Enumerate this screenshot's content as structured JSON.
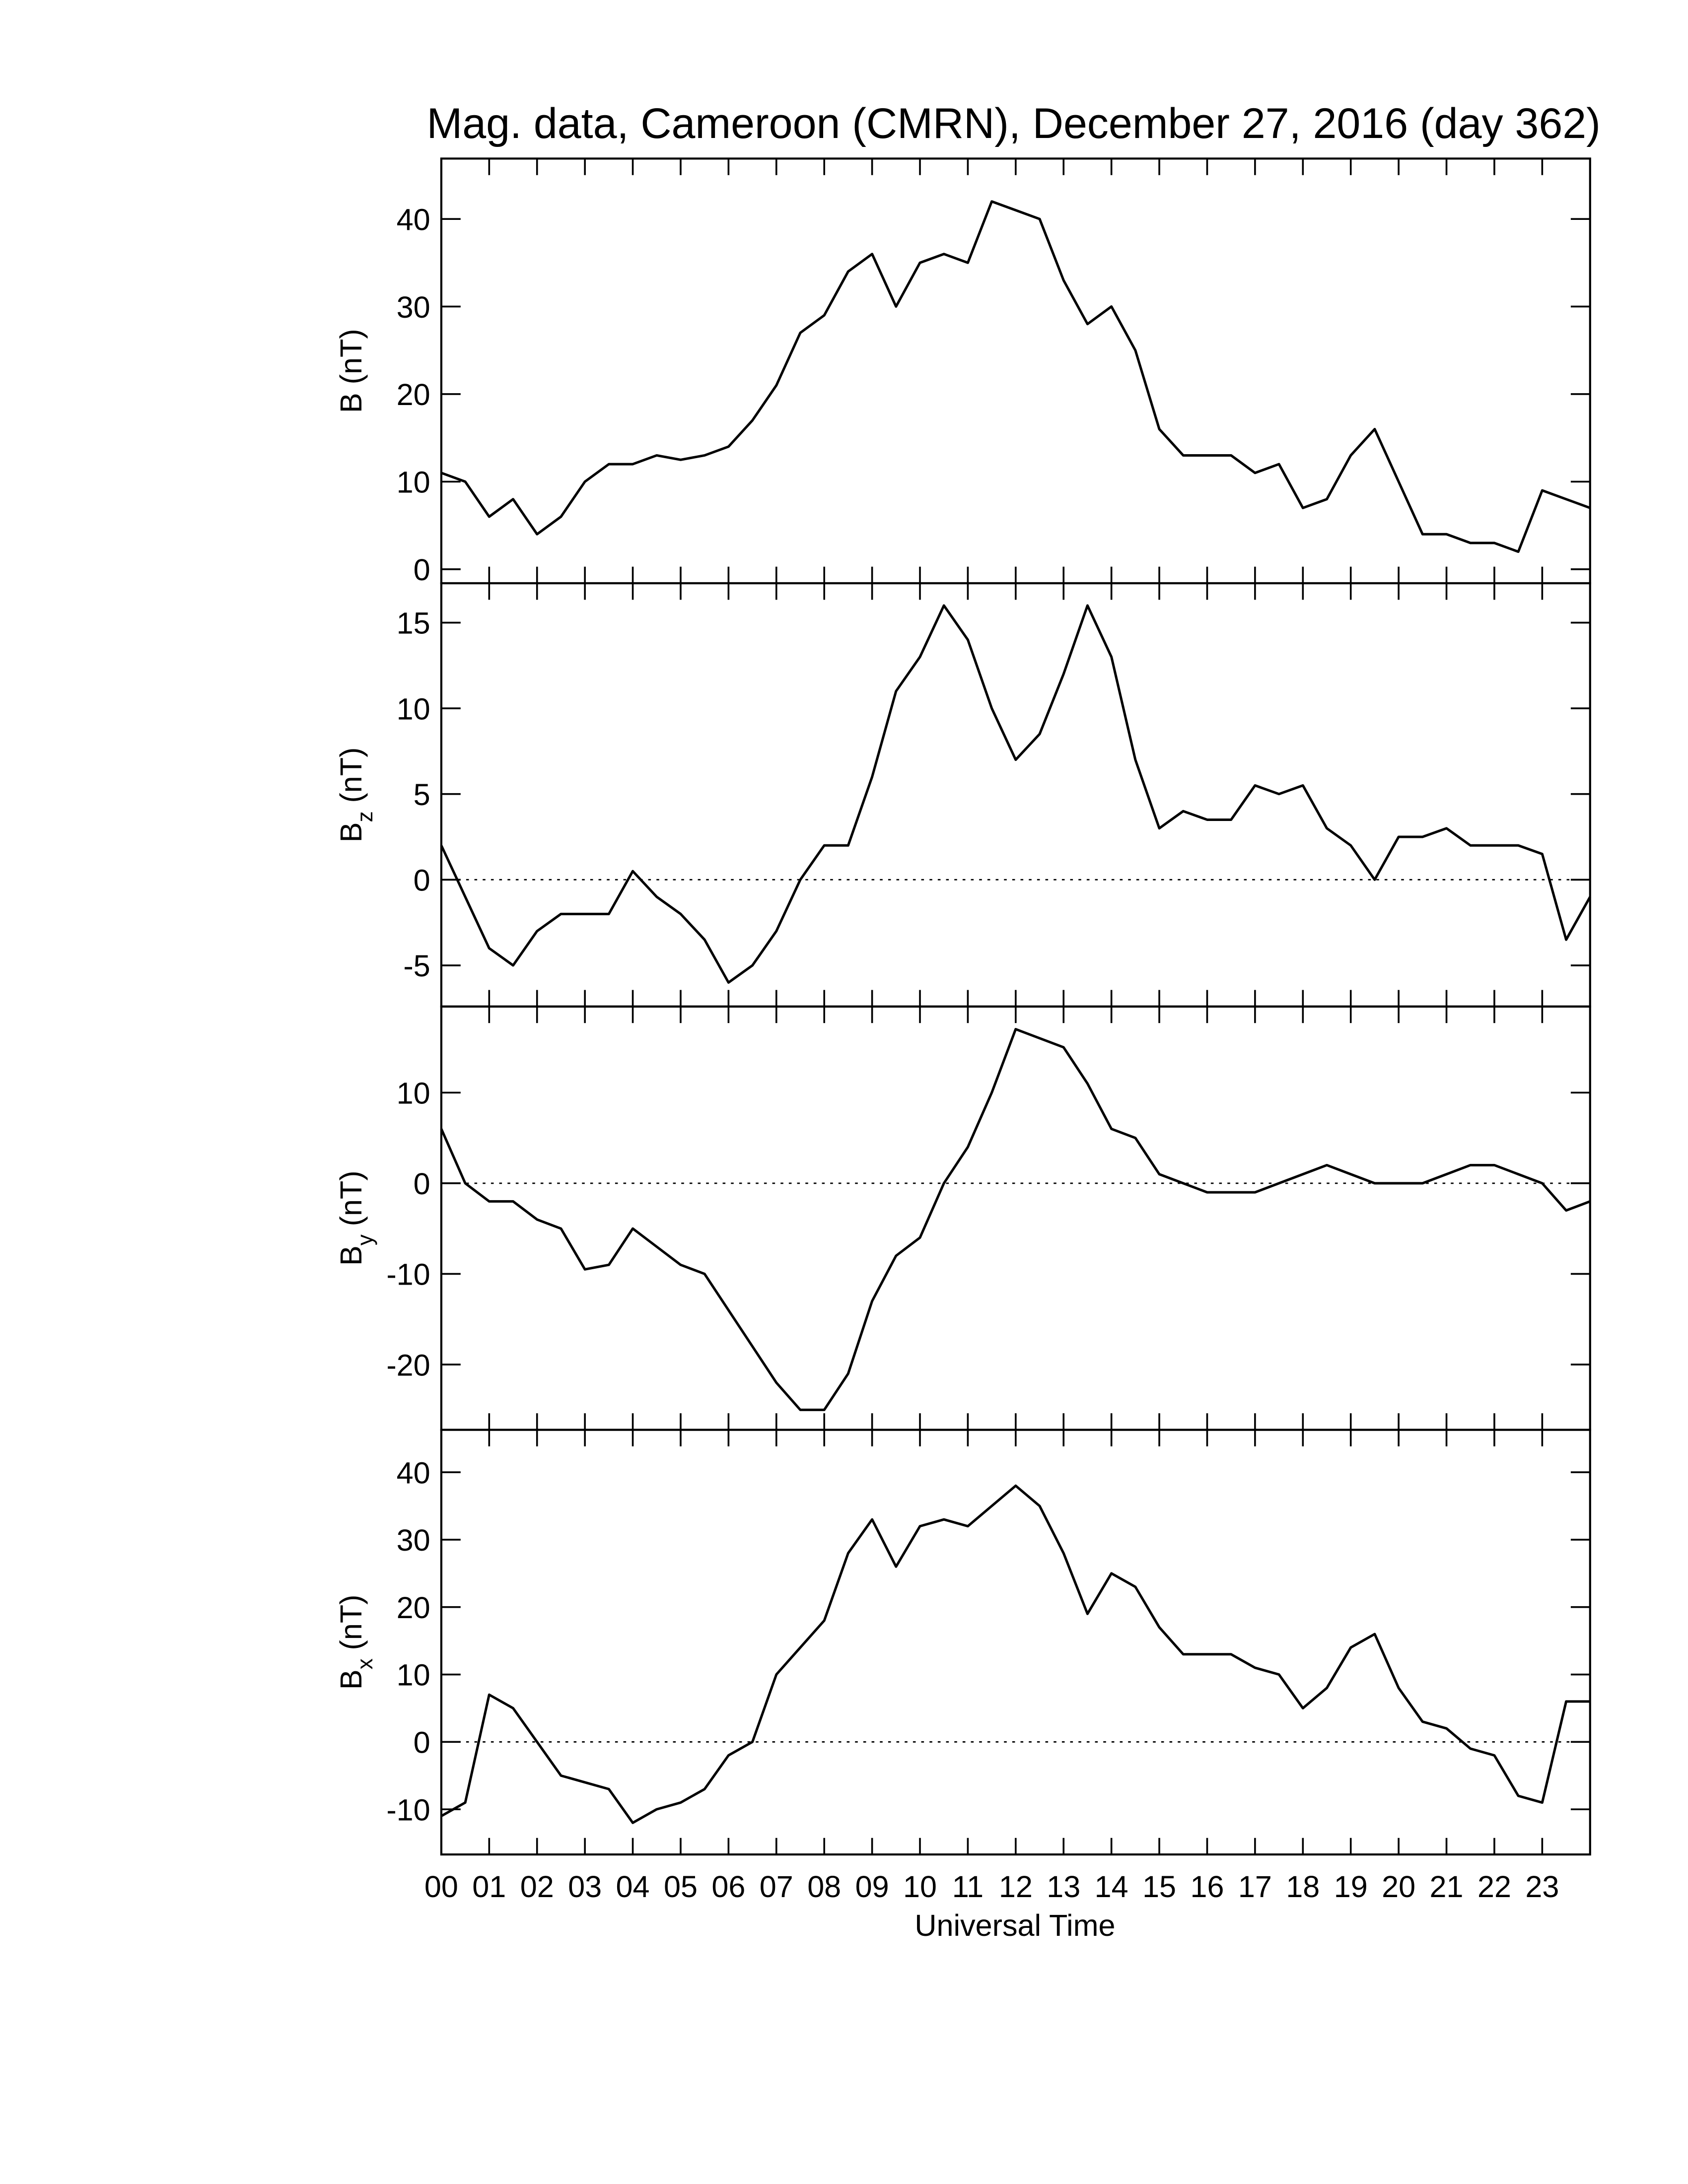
{
  "chart_data": [
    {
      "type": "line",
      "title": "Mag. data, Cameroon (CMRN), December 27, 2016 (day 362)",
      "ylabel": "B (nT)",
      "color": "#000000",
      "xlim": [
        0,
        24
      ],
      "ylim": [
        -1.6,
        46.9
      ],
      "yticks": [
        0,
        10,
        20,
        30,
        40
      ],
      "x": [
        0,
        0.5,
        1,
        1.5,
        2,
        2.5,
        3,
        3.5,
        4,
        4.5,
        5,
        5.5,
        6,
        6.5,
        7,
        7.5,
        8,
        8.5,
        9,
        9.5,
        10,
        10.5,
        11,
        11.5,
        12,
        12.5,
        13,
        13.5,
        14,
        14.5,
        15,
        15.5,
        16,
        16.5,
        17,
        17.5,
        18,
        18.5,
        19,
        19.5,
        20,
        20.5,
        21,
        21.5,
        22,
        22.5,
        23,
        23.5,
        24
      ],
      "values": [
        11,
        10,
        6,
        8,
        4,
        6,
        10,
        12,
        12,
        13,
        12.5,
        13,
        14,
        17,
        21,
        27,
        29,
        34,
        36,
        30,
        35,
        36,
        35,
        42,
        41,
        40,
        33,
        28,
        30,
        25,
        16,
        13,
        13,
        13,
        11,
        12,
        7,
        8,
        13,
        16,
        10,
        4,
        4,
        3,
        3,
        2,
        9,
        8,
        7
      ]
    },
    {
      "type": "line",
      "ylabel": "B",
      "ylabel_sub": "z",
      "ylabel_unit": "(nT)",
      "color": "#000000",
      "zero_line": true,
      "xlim": [
        0,
        24
      ],
      "ylim": [
        -7.4,
        17.3
      ],
      "yticks": [
        -5,
        0,
        5,
        10,
        15
      ],
      "x": [
        0,
        0.5,
        1,
        1.5,
        2,
        2.5,
        3,
        3.5,
        4,
        4.5,
        5,
        5.5,
        6,
        6.5,
        7,
        7.5,
        8,
        8.5,
        9,
        9.5,
        10,
        10.5,
        11,
        11.5,
        12,
        12.5,
        13,
        13.5,
        14,
        14.5,
        15,
        15.5,
        16,
        16.5,
        17,
        17.5,
        18,
        18.5,
        19,
        19.5,
        20,
        20.5,
        21,
        21.5,
        22,
        22.5,
        23,
        23.5,
        24
      ],
      "values": [
        2,
        -1,
        -4,
        -5,
        -3,
        -2,
        -2,
        -2,
        0.5,
        -1,
        -2,
        -3.5,
        -6,
        -5,
        -3,
        0,
        2,
        2,
        6,
        11,
        13,
        16,
        14,
        10,
        7,
        8.5,
        12,
        16,
        13,
        7,
        3,
        4,
        3.5,
        3.5,
        5.5,
        5,
        5.5,
        3,
        2,
        0,
        2.5,
        2.5,
        3,
        2,
        2,
        2,
        1.5,
        -3.5,
        -1
      ]
    },
    {
      "type": "line",
      "ylabel": "B",
      "ylabel_sub": "y",
      "ylabel_unit": "(nT)",
      "color": "#000000",
      "zero_line": true,
      "xlim": [
        0,
        24
      ],
      "ylim": [
        -27.2,
        19.5
      ],
      "yticks": [
        -20,
        -10,
        0,
        10
      ],
      "x": [
        0,
        0.5,
        1,
        1.5,
        2,
        2.5,
        3,
        3.5,
        4,
        4.5,
        5,
        5.5,
        6,
        6.5,
        7,
        7.5,
        8,
        8.5,
        9,
        9.5,
        10,
        10.5,
        11,
        11.5,
        12,
        12.5,
        13,
        13.5,
        14,
        14.5,
        15,
        15.5,
        16,
        16.5,
        17,
        17.5,
        18,
        18.5,
        19,
        19.5,
        20,
        20.5,
        21,
        21.5,
        22,
        22.5,
        23,
        23.5,
        24
      ],
      "values": [
        6,
        0,
        -2,
        -2,
        -4,
        -5,
        -9.5,
        -9,
        -5,
        -7,
        -9,
        -10,
        -14,
        -18,
        -22,
        -25,
        -25,
        -21,
        -13,
        -8,
        -6,
        0,
        4,
        10,
        17,
        16,
        15,
        11,
        6,
        5,
        1,
        0,
        -1,
        -1,
        -1,
        0,
        1,
        2,
        1,
        0,
        0,
        0,
        1,
        2,
        2,
        1,
        0,
        -3,
        -2
      ]
    },
    {
      "type": "line",
      "ylabel": "B",
      "ylabel_sub": "x",
      "ylabel_unit": "(nT)",
      "xlabel": "Universal Time",
      "color": "#000000",
      "zero_line": true,
      "xlim": [
        0,
        24
      ],
      "ylim": [
        -16.7,
        46.3
      ],
      "yticks": [
        -10,
        0,
        10,
        20,
        30,
        40
      ],
      "xticks": [
        {
          "value": 0,
          "label": "00"
        },
        {
          "value": 1,
          "label": "01"
        },
        {
          "value": 2,
          "label": "02"
        },
        {
          "value": 3,
          "label": "03"
        },
        {
          "value": 4,
          "label": "04"
        },
        {
          "value": 5,
          "label": "05"
        },
        {
          "value": 6,
          "label": "06"
        },
        {
          "value": 7,
          "label": "07"
        },
        {
          "value": 8,
          "label": "08"
        },
        {
          "value": 9,
          "label": "09"
        },
        {
          "value": 10,
          "label": "10"
        },
        {
          "value": 11,
          "label": "11"
        },
        {
          "value": 12,
          "label": "12"
        },
        {
          "value": 13,
          "label": "13"
        },
        {
          "value": 14,
          "label": "14"
        },
        {
          "value": 15,
          "label": "15"
        },
        {
          "value": 16,
          "label": "16"
        },
        {
          "value": 17,
          "label": "17"
        },
        {
          "value": 18,
          "label": "18"
        },
        {
          "value": 19,
          "label": "19"
        },
        {
          "value": 20,
          "label": "20"
        },
        {
          "value": 21,
          "label": "21"
        },
        {
          "value": 22,
          "label": "22"
        },
        {
          "value": 23,
          "label": "23"
        }
      ],
      "x": [
        0,
        0.5,
        1,
        1.5,
        2,
        2.5,
        3,
        3.5,
        4,
        4.5,
        5,
        5.5,
        6,
        6.5,
        7,
        7.5,
        8,
        8.5,
        9,
        9.5,
        10,
        10.5,
        11,
        11.5,
        12,
        12.5,
        13,
        13.5,
        14,
        14.5,
        15,
        15.5,
        16,
        16.5,
        17,
        17.5,
        18,
        18.5,
        19,
        19.5,
        20,
        20.5,
        21,
        21.5,
        22,
        22.5,
        23,
        23.5,
        24
      ],
      "values": [
        -11,
        -9,
        7,
        5,
        0,
        -5,
        -6,
        -7,
        -12,
        -10,
        -9,
        -7,
        -2,
        0,
        10,
        14,
        18,
        28,
        33,
        26,
        32,
        33,
        32,
        35,
        38,
        35,
        28,
        19,
        25,
        23,
        17,
        13,
        13,
        13,
        11,
        10,
        5,
        8,
        14,
        16,
        8,
        3,
        2,
        -1,
        -2,
        -8,
        -9,
        6,
        6
      ]
    }
  ]
}
